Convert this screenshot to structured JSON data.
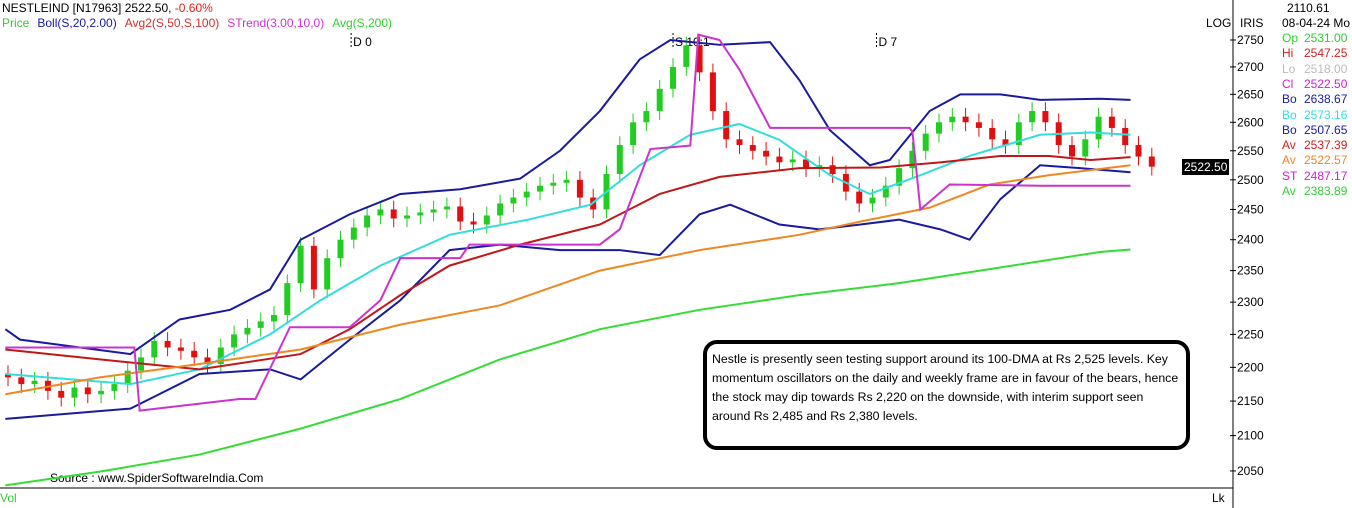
{
  "header": {
    "symbol": "NESTLEIND [N17963]",
    "price": "2522.50,",
    "change": "-0.60%"
  },
  "legend": [
    {
      "label": "Price",
      "color": "#33cc33"
    },
    {
      "label": "Boll(S,20,2.00)",
      "color": "#1a1aa0"
    },
    {
      "label": "Avg2(S,50,S,100)",
      "color": "#d03030"
    },
    {
      "label": "STrend(3.00,10,0)",
      "color": "#cc33cc"
    },
    {
      "label": "Avg(S,200)",
      "color": "#33cc33"
    }
  ],
  "markers": [
    {
      "label": "D 0",
      "bar": 25.8
    },
    {
      "label": "S 10:1",
      "bar": 50
    },
    {
      "label": "D 7",
      "bar": 65.3
    }
  ],
  "axis": {
    "log_label": "LOG",
    "iris_label": "IRIS",
    "current_price": "2522.50",
    "vol_label": "Vol",
    "lk_label": "Lk"
  },
  "panel": {
    "value": "2110.61",
    "date": "08-04-24 Mo",
    "rows": [
      {
        "k": "Op",
        "v": "2531.00",
        "color": "#33cc33"
      },
      {
        "k": "Hi",
        "v": "2547.25",
        "color": "#d02020"
      },
      {
        "k": "Lo",
        "v": "2518.00",
        "color": "#bbbbbb"
      },
      {
        "k": "Cl",
        "v": "2522.50",
        "color": "#cc22cc"
      },
      {
        "k": "Bo",
        "v": "2638.67",
        "color": "#1a1aa0"
      },
      {
        "k": "Bo",
        "v": "2573.16",
        "color": "#33dddd"
      },
      {
        "k": "Bo",
        "v": "2507.65",
        "color": "#1a1aa0"
      },
      {
        "k": "Av",
        "v": "2537.39",
        "color": "#d02020"
      },
      {
        "k": "Av",
        "v": "2522.57",
        "color": "#ee8822"
      },
      {
        "k": "ST",
        "v": "2487.17",
        "color": "#cc22cc"
      },
      {
        "k": "Av",
        "v": "2383.89",
        "color": "#33cc33"
      }
    ]
  },
  "source": "Source : www.SpiderSoftwareIndia.Com",
  "note": "Nestle is presently seen testing support around its 100-DMA at Rs 2,525 levels. Key momentum oscillators on the daily and weekly frame are in favour of the bears, hence the stock may dip towards Rs 2,220 on the downside, with interim support seen around Rs 2,485 and Rs 2,380 levels.",
  "chart_data": {
    "type": "line",
    "title": "NESTLEIND",
    "scale": "log",
    "ylim": [
      2030,
      2760
    ],
    "yticks": [
      2750,
      2700,
      2650,
      2600,
      2550,
      2500,
      2450,
      2400,
      2350,
      2300,
      2250,
      2200,
      2150,
      2100,
      2050
    ],
    "closes": [
      2185,
      2175,
      2180,
      2165,
      2155,
      2170,
      2160,
      2165,
      2175,
      2195,
      2215,
      2240,
      2230,
      2225,
      2215,
      2205,
      2230,
      2250,
      2260,
      2270,
      2280,
      2330,
      2390,
      2320,
      2370,
      2400,
      2420,
      2440,
      2450,
      2435,
      2440,
      2445,
      2450,
      2455,
      2430,
      2425,
      2440,
      2460,
      2470,
      2480,
      2490,
      2495,
      2500,
      2470,
      2450,
      2510,
      2560,
      2600,
      2620,
      2660,
      2700,
      2740,
      2690,
      2620,
      2570,
      2560,
      2550,
      2540,
      2530,
      2535,
      2520,
      2525,
      2510,
      2480,
      2460,
      2470,
      2490,
      2520,
      2550,
      2580,
      2600,
      2610,
      2600,
      2590,
      2570,
      2560,
      2600,
      2620,
      2600,
      2560,
      2540,
      2570,
      2610,
      2590,
      2560,
      2540,
      2522.5
    ],
    "series": [
      {
        "name": "Boll upper",
        "color": "#1a1aa0",
        "points": [
          [
            -0.2,
            2258
          ],
          [
            0.9,
            2242
          ],
          [
            9.2,
            2220
          ],
          [
            12.9,
            2273
          ],
          [
            16.7,
            2288
          ],
          [
            19.7,
            2320
          ],
          [
            22,
            2400
          ],
          [
            25.7,
            2442
          ],
          [
            29.5,
            2476
          ],
          [
            34,
            2484
          ],
          [
            38.5,
            2502
          ],
          [
            41.5,
            2550
          ],
          [
            44.5,
            2620
          ],
          [
            47.5,
            2714
          ],
          [
            49.8,
            2750
          ],
          [
            53.5,
            2741
          ],
          [
            57.3,
            2746
          ],
          [
            59.5,
            2676
          ],
          [
            61.8,
            2586
          ],
          [
            64.8,
            2525
          ],
          [
            66.3,
            2534
          ],
          [
            69.3,
            2620
          ],
          [
            71.6,
            2650
          ],
          [
            74.6,
            2650
          ],
          [
            77.6,
            2640
          ],
          [
            82.1,
            2642
          ],
          [
            84.4,
            2640
          ]
        ]
      },
      {
        "name": "Boll lower",
        "color": "#1a1aa0",
        "points": [
          [
            -0.2,
            2124
          ],
          [
            9.2,
            2139
          ],
          [
            14.4,
            2190
          ],
          [
            19.7,
            2197
          ],
          [
            22,
            2182
          ],
          [
            25.7,
            2242
          ],
          [
            29.5,
            2303
          ],
          [
            33.2,
            2383
          ],
          [
            37,
            2392
          ],
          [
            41.5,
            2383
          ],
          [
            46,
            2383
          ],
          [
            49,
            2375
          ],
          [
            52,
            2442
          ],
          [
            54.3,
            2458
          ],
          [
            58,
            2425
          ],
          [
            61,
            2417
          ],
          [
            64.1,
            2425
          ],
          [
            67,
            2433
          ],
          [
            70.1,
            2417
          ],
          [
            72.3,
            2400
          ],
          [
            74.6,
            2467
          ],
          [
            77.6,
            2525
          ],
          [
            80.6,
            2520
          ],
          [
            84.4,
            2513
          ]
        ]
      },
      {
        "name": "Boll mid",
        "color": "#33dddd",
        "points": [
          [
            -0.2,
            2190
          ],
          [
            9.2,
            2175
          ],
          [
            14.4,
            2197
          ],
          [
            19.7,
            2250
          ],
          [
            23.5,
            2303
          ],
          [
            28,
            2358
          ],
          [
            33.2,
            2408
          ],
          [
            39.1,
            2433
          ],
          [
            43.8,
            2458
          ],
          [
            47.5,
            2525
          ],
          [
            51.3,
            2578
          ],
          [
            55,
            2597
          ],
          [
            58,
            2569
          ],
          [
            61.8,
            2508
          ],
          [
            64.8,
            2476
          ],
          [
            68.6,
            2508
          ],
          [
            72.3,
            2541
          ],
          [
            77.6,
            2578
          ],
          [
            81.4,
            2582
          ],
          [
            84.4,
            2578
          ]
        ]
      },
      {
        "name": "Avg 50",
        "color": "#c01818",
        "points": [
          [
            -0.2,
            2227
          ],
          [
            6.9,
            2212
          ],
          [
            14.4,
            2197
          ],
          [
            22,
            2220
          ],
          [
            25.7,
            2258
          ],
          [
            29.5,
            2311
          ],
          [
            33.2,
            2358
          ],
          [
            38.5,
            2392
          ],
          [
            44.5,
            2425
          ],
          [
            49,
            2476
          ],
          [
            53.5,
            2505
          ],
          [
            59.5,
            2520
          ],
          [
            65.6,
            2521
          ],
          [
            70.1,
            2530
          ],
          [
            74.6,
            2541
          ],
          [
            78.3,
            2541
          ],
          [
            81.4,
            2534
          ],
          [
            84.4,
            2539
          ]
        ]
      },
      {
        "name": "Avg 100",
        "color": "#ee8822",
        "points": [
          [
            -0.2,
            2160
          ],
          [
            6.9,
            2185
          ],
          [
            14.4,
            2205
          ],
          [
            22,
            2227
          ],
          [
            29.5,
            2265
          ],
          [
            37,
            2295
          ],
          [
            44.5,
            2350
          ],
          [
            52,
            2383
          ],
          [
            59.5,
            2408
          ],
          [
            64.1,
            2430
          ],
          [
            69.3,
            2453
          ],
          [
            73.8,
            2492
          ],
          [
            78.3,
            2508
          ],
          [
            84.4,
            2525
          ]
        ]
      },
      {
        "name": "Avg 200",
        "color": "#33dd33",
        "points": [
          [
            -0.2,
            2030
          ],
          [
            6.9,
            2049
          ],
          [
            14.4,
            2073
          ],
          [
            22,
            2110
          ],
          [
            29.5,
            2153
          ],
          [
            37,
            2212
          ],
          [
            44.5,
            2258
          ],
          [
            52,
            2288
          ],
          [
            59.5,
            2311
          ],
          [
            67,
            2330
          ],
          [
            74.6,
            2355
          ],
          [
            82.1,
            2380
          ],
          [
            84.4,
            2384
          ]
        ]
      },
      {
        "name": "SuperTrend",
        "color": "#cc33cc",
        "points": [
          [
            -0.2,
            2230
          ],
          [
            9.5,
            2230
          ],
          [
            9.9,
            2136
          ],
          [
            17.4,
            2153
          ],
          [
            18.6,
            2153
          ],
          [
            21.2,
            2261
          ],
          [
            25.7,
            2261
          ],
          [
            28,
            2303
          ],
          [
            29.5,
            2370
          ],
          [
            34,
            2370
          ],
          [
            34.7,
            2392
          ],
          [
            44.5,
            2392
          ],
          [
            46,
            2417
          ],
          [
            48.3,
            2553
          ],
          [
            51.3,
            2559
          ],
          [
            51.9,
            2760
          ],
          [
            53.5,
            2750
          ],
          [
            55,
            2695
          ],
          [
            57.3,
            2590
          ],
          [
            67.8,
            2590
          ],
          [
            68,
            2583
          ],
          [
            68.6,
            2450
          ],
          [
            70.8,
            2492
          ],
          [
            77.6,
            2490
          ],
          [
            84.4,
            2490
          ]
        ]
      }
    ]
  }
}
